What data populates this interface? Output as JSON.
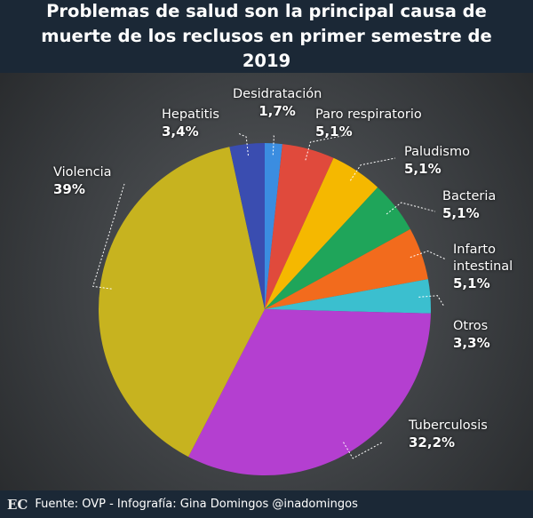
{
  "chart_data": {
    "type": "pie",
    "title": "Problemas de salud son la principal causa de muerte de los reclusos en primer semestre de 2019",
    "categories": [
      "Desidratación",
      "Paro respiratorio",
      "Paludismo",
      "Bacteria",
      "Infarto intestinal",
      "Otros",
      "Tuberculosis",
      "Violencia",
      "Hepatitis"
    ],
    "values": [
      1.7,
      5.1,
      5.1,
      5.1,
      5.1,
      3.3,
      32.2,
      39,
      3.4
    ],
    "value_labels": [
      "1,7%",
      "5,1%",
      "5,1%",
      "5,1%",
      "5,1%",
      "3,3%",
      "32,2%",
      "39%",
      "3,4%"
    ],
    "colors": [
      "#3b8de0",
      "#e04a3c",
      "#f5b800",
      "#1fa55a",
      "#f26b1d",
      "#3bbfcf",
      "#b43fd0",
      "#c7b31f",
      "#3a4db0"
    ]
  },
  "footer": {
    "logo": "EC",
    "text": "Fuente: OVP - Infografía: Gina Domingos @inadomingos"
  }
}
